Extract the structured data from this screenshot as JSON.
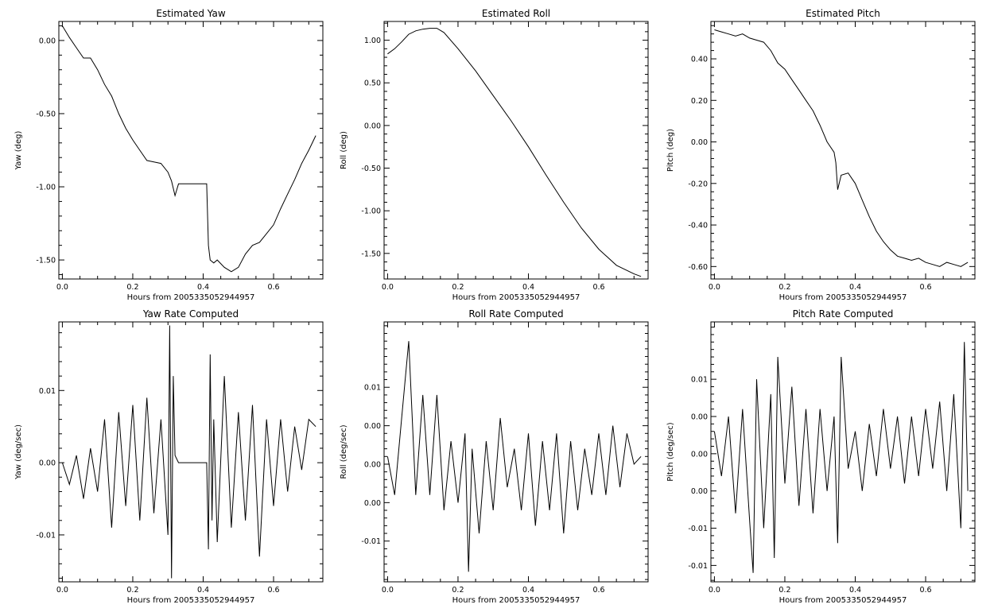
{
  "chart_data": [
    {
      "type": "line",
      "title": "Estimated Yaw",
      "xlabel": "Hours from 2005335052944957",
      "ylabel": "Yaw (deg)",
      "xlim": [
        -0.01,
        0.74
      ],
      "ylim": [
        -1.63,
        0.13
      ],
      "xticks": [
        0.0,
        0.2,
        0.4,
        0.6
      ],
      "xtick_labels": [
        "0.0",
        "0.2",
        "0.4",
        "0.6"
      ],
      "yticks": [
        0.0,
        -0.5,
        -1.0,
        -1.5
      ],
      "ytick_labels": [
        "0.00",
        "-0.50",
        "-1.00",
        "-1.50"
      ],
      "x": [
        0.0,
        0.02,
        0.04,
        0.06,
        0.08,
        0.1,
        0.12,
        0.14,
        0.16,
        0.18,
        0.2,
        0.22,
        0.24,
        0.26,
        0.28,
        0.3,
        0.31,
        0.32,
        0.33,
        0.34,
        0.36,
        0.38,
        0.4,
        0.41,
        0.415,
        0.42,
        0.43,
        0.44,
        0.46,
        0.48,
        0.5,
        0.52,
        0.54,
        0.56,
        0.58,
        0.6,
        0.62,
        0.64,
        0.66,
        0.68,
        0.7,
        0.72
      ],
      "values": [
        0.1,
        0.02,
        -0.05,
        -0.12,
        -0.12,
        -0.2,
        -0.3,
        -0.38,
        -0.5,
        -0.6,
        -0.68,
        -0.75,
        -0.82,
        -0.83,
        -0.84,
        -0.9,
        -0.96,
        -1.06,
        -0.98,
        -0.98,
        -0.98,
        -0.98,
        -0.98,
        -0.98,
        -1.4,
        -1.5,
        -1.52,
        -1.5,
        -1.55,
        -1.58,
        -1.55,
        -1.46,
        -1.4,
        -1.38,
        -1.32,
        -1.26,
        -1.15,
        -1.05,
        -0.95,
        -0.84,
        -0.75,
        -0.65
      ]
    },
    {
      "type": "line",
      "title": "Estimated Roll",
      "xlabel": "Hours from 2005335052944957",
      "ylabel": "Roll (deg)",
      "xlim": [
        -0.01,
        0.74
      ],
      "ylim": [
        -1.8,
        1.22
      ],
      "xticks": [
        0.0,
        0.2,
        0.4,
        0.6
      ],
      "xtick_labels": [
        "0.0",
        "0.2",
        "0.4",
        "0.6"
      ],
      "yticks": [
        1.0,
        0.5,
        0.0,
        -0.5,
        -1.0,
        -1.5
      ],
      "ytick_labels": [
        "1.00",
        "0.50",
        "0.00",
        "-0.50",
        "-1.00",
        "-1.50"
      ],
      "x": [
        0.0,
        0.02,
        0.04,
        0.06,
        0.08,
        0.1,
        0.12,
        0.14,
        0.16,
        0.2,
        0.25,
        0.3,
        0.35,
        0.4,
        0.45,
        0.5,
        0.55,
        0.6,
        0.65,
        0.7,
        0.72
      ],
      "values": [
        0.84,
        0.9,
        0.98,
        1.07,
        1.11,
        1.13,
        1.14,
        1.14,
        1.09,
        0.9,
        0.64,
        0.35,
        0.06,
        -0.25,
        -0.58,
        -0.9,
        -1.2,
        -1.45,
        -1.64,
        -1.74,
        -1.77
      ]
    },
    {
      "type": "line",
      "title": "Estimated Pitch",
      "xlabel": "Hours from 2005335052944957",
      "ylabel": "Pitch (deg)",
      "xlim": [
        -0.01,
        0.74
      ],
      "ylim": [
        -0.66,
        0.58
      ],
      "xticks": [
        0.0,
        0.2,
        0.4,
        0.6
      ],
      "xtick_labels": [
        "0.0",
        "0.2",
        "0.4",
        "0.6"
      ],
      "yticks": [
        0.4,
        0.2,
        0.0,
        -0.2,
        -0.4,
        -0.6
      ],
      "ytick_labels": [
        "0.40",
        "0.20",
        "0.00",
        "-0.20",
        "-0.40",
        "-0.60"
      ],
      "x": [
        0.0,
        0.02,
        0.04,
        0.06,
        0.08,
        0.1,
        0.12,
        0.14,
        0.16,
        0.18,
        0.2,
        0.22,
        0.24,
        0.26,
        0.28,
        0.3,
        0.32,
        0.34,
        0.345,
        0.35,
        0.36,
        0.38,
        0.4,
        0.42,
        0.44,
        0.46,
        0.48,
        0.5,
        0.52,
        0.54,
        0.56,
        0.58,
        0.6,
        0.62,
        0.64,
        0.66,
        0.68,
        0.7,
        0.72
      ],
      "values": [
        0.54,
        0.53,
        0.52,
        0.51,
        0.52,
        0.5,
        0.49,
        0.48,
        0.44,
        0.38,
        0.35,
        0.3,
        0.25,
        0.2,
        0.15,
        0.08,
        0.0,
        -0.05,
        -0.1,
        -0.23,
        -0.16,
        -0.15,
        -0.2,
        -0.28,
        -0.36,
        -0.43,
        -0.48,
        -0.52,
        -0.55,
        -0.56,
        -0.57,
        -0.56,
        -0.58,
        -0.59,
        -0.6,
        -0.58,
        -0.59,
        -0.6,
        -0.58
      ]
    },
    {
      "type": "line",
      "title": "Yaw Rate Computed",
      "xlabel": "Hours from 2005335052944957",
      "ylabel": "Yaw (deg/sec)",
      "xlim": [
        -0.01,
        0.74
      ],
      "ylim": [
        -0.0165,
        0.0195
      ],
      "xticks": [
        0.0,
        0.2,
        0.4,
        0.6
      ],
      "xtick_labels": [
        "0.0",
        "0.2",
        "0.4",
        "0.6"
      ],
      "yticks": [
        0.01,
        0.0,
        -0.01
      ],
      "ytick_labels": [
        "0.01",
        "0.00",
        "-0.01"
      ],
      "x": [
        0.0,
        0.02,
        0.04,
        0.06,
        0.08,
        0.1,
        0.12,
        0.14,
        0.16,
        0.18,
        0.2,
        0.22,
        0.24,
        0.26,
        0.28,
        0.3,
        0.305,
        0.31,
        0.315,
        0.32,
        0.33,
        0.36,
        0.39,
        0.41,
        0.415,
        0.42,
        0.425,
        0.43,
        0.44,
        0.46,
        0.48,
        0.5,
        0.52,
        0.54,
        0.56,
        0.58,
        0.6,
        0.62,
        0.64,
        0.66,
        0.68,
        0.7,
        0.72
      ],
      "values": [
        0.0,
        -0.003,
        0.001,
        -0.005,
        0.002,
        -0.004,
        0.006,
        -0.009,
        0.007,
        -0.006,
        0.008,
        -0.008,
        0.009,
        -0.007,
        0.006,
        -0.01,
        0.019,
        -0.016,
        0.012,
        0.001,
        0.0,
        0.0,
        0.0,
        0.0,
        -0.012,
        0.015,
        -0.008,
        0.006,
        -0.011,
        0.012,
        -0.009,
        0.007,
        -0.008,
        0.008,
        -0.013,
        0.006,
        -0.006,
        0.006,
        -0.004,
        0.005,
        -0.001,
        0.006,
        0.005
      ]
    },
    {
      "type": "line",
      "title": "Roll Rate Computed",
      "xlabel": "Hours from 2005335052944957",
      "ylabel": "Roll (deg/sec)",
      "xlim": [
        -0.01,
        0.74
      ],
      "ylim": [
        -0.0153,
        0.0185
      ],
      "xticks": [
        0.0,
        0.2,
        0.4,
        0.6
      ],
      "xtick_labels": [
        "0.0",
        "0.2",
        "0.4",
        "0.6"
      ],
      "yticks": [
        0.01,
        0.005,
        0.0,
        -0.005,
        -0.01
      ],
      "ytick_labels": [
        "0.01",
        "0.00",
        "0.00",
        "0.00",
        "-0.01"
      ],
      "x": [
        0.0,
        0.02,
        0.04,
        0.06,
        0.08,
        0.1,
        0.12,
        0.14,
        0.16,
        0.18,
        0.2,
        0.22,
        0.23,
        0.24,
        0.26,
        0.28,
        0.3,
        0.32,
        0.34,
        0.36,
        0.38,
        0.4,
        0.42,
        0.44,
        0.46,
        0.48,
        0.5,
        0.52,
        0.54,
        0.56,
        0.58,
        0.6,
        0.62,
        0.64,
        0.66,
        0.68,
        0.7,
        0.72
      ],
      "values": [
        0.001,
        -0.004,
        0.006,
        0.016,
        -0.004,
        0.009,
        -0.004,
        0.009,
        -0.006,
        0.003,
        -0.005,
        0.004,
        -0.014,
        0.002,
        -0.009,
        0.003,
        -0.006,
        0.006,
        -0.003,
        0.002,
        -0.006,
        0.004,
        -0.008,
        0.003,
        -0.006,
        0.004,
        -0.009,
        0.003,
        -0.006,
        0.002,
        -0.004,
        0.004,
        -0.004,
        0.005,
        -0.003,
        0.004,
        0.0,
        0.001
      ]
    },
    {
      "type": "line",
      "title": "Pitch Rate Computed",
      "xlabel": "Hours from 2005335052944957",
      "ylabel": "Pitch (deg/sec)",
      "xlim": [
        -0.01,
        0.74
      ],
      "ylim": [
        -0.0172,
        0.0177
      ],
      "xticks": [
        0.0,
        0.2,
        0.4,
        0.6
      ],
      "xtick_labels": [
        "0.0",
        "0.2",
        "0.4",
        "0.6"
      ],
      "yticks": [
        0.01,
        0.005,
        0.0,
        -0.005,
        -0.01,
        -0.015
      ],
      "ytick_labels": [
        "0.01",
        "0.00",
        "0.00",
        "0.00",
        "-0.01",
        "-0.01"
      ],
      "x": [
        0.0,
        0.02,
        0.04,
        0.06,
        0.08,
        0.1,
        0.11,
        0.12,
        0.14,
        0.16,
        0.17,
        0.18,
        0.2,
        0.22,
        0.24,
        0.26,
        0.28,
        0.3,
        0.32,
        0.34,
        0.35,
        0.36,
        0.38,
        0.4,
        0.42,
        0.44,
        0.46,
        0.48,
        0.5,
        0.52,
        0.54,
        0.56,
        0.58,
        0.6,
        0.62,
        0.64,
        0.66,
        0.68,
        0.7,
        0.71,
        0.72
      ],
      "values": [
        0.003,
        -0.003,
        0.005,
        -0.008,
        0.006,
        -0.009,
        -0.016,
        0.01,
        -0.01,
        0.008,
        -0.014,
        0.013,
        -0.004,
        0.009,
        -0.007,
        0.006,
        -0.008,
        0.006,
        -0.005,
        0.005,
        -0.012,
        0.013,
        -0.002,
        0.003,
        -0.005,
        0.004,
        -0.003,
        0.006,
        -0.002,
        0.005,
        -0.004,
        0.005,
        -0.003,
        0.006,
        -0.002,
        0.007,
        -0.005,
        0.008,
        -0.01,
        0.015,
        -0.005
      ]
    }
  ]
}
